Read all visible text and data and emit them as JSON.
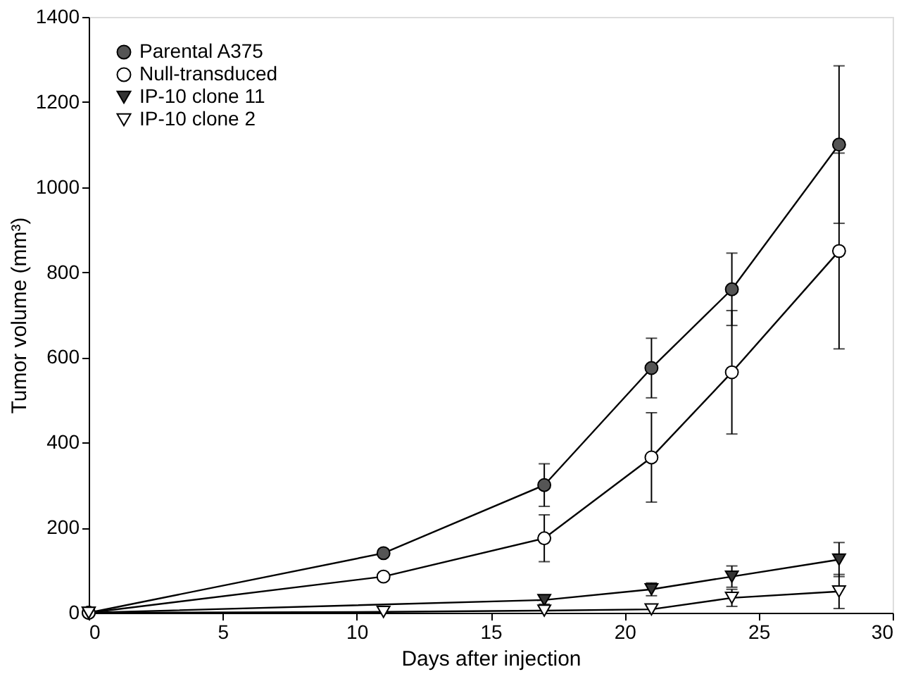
{
  "chart_data": {
    "type": "line",
    "xlabel": "Days after injection",
    "ylabel": "Tumor volume (mm³)",
    "x": [
      0,
      11,
      17,
      21,
      24,
      28
    ],
    "xlim": [
      0,
      30
    ],
    "xticks": [
      0,
      5,
      10,
      15,
      20,
      25,
      30
    ],
    "ylim": [
      0,
      1400
    ],
    "yticks": [
      0,
      200,
      400,
      600,
      800,
      1000,
      1200,
      1400
    ],
    "grid": false,
    "legend": "top left",
    "line_style": "solid",
    "series": [
      {
        "name": "Parental A375",
        "color": "#555555",
        "marker": "circle",
        "values": [
          0,
          140,
          300,
          575,
          760,
          1100
        ],
        "errors": [
          null,
          null,
          50,
          70,
          85,
          185
        ]
      },
      {
        "name": "Null-transduced",
        "color": "#ffffff",
        "marker": "circle",
        "values": [
          0,
          85,
          175,
          365,
          565,
          850
        ],
        "errors": [
          null,
          null,
          55,
          105,
          145,
          230
        ]
      },
      {
        "name": "IP-10 clone 11",
        "color": "#333333",
        "marker": "triangle",
        "values": [
          0,
          null,
          30,
          55,
          85,
          125
        ],
        "errors": [
          null,
          null,
          10,
          15,
          25,
          40
        ]
      },
      {
        "name": "IP-10 clone 2",
        "color": "#ffffff",
        "marker": "triangle",
        "values": [
          0,
          2,
          5,
          8,
          35,
          50
        ],
        "errors": [
          null,
          null,
          null,
          null,
          20,
          40
        ]
      }
    ]
  }
}
